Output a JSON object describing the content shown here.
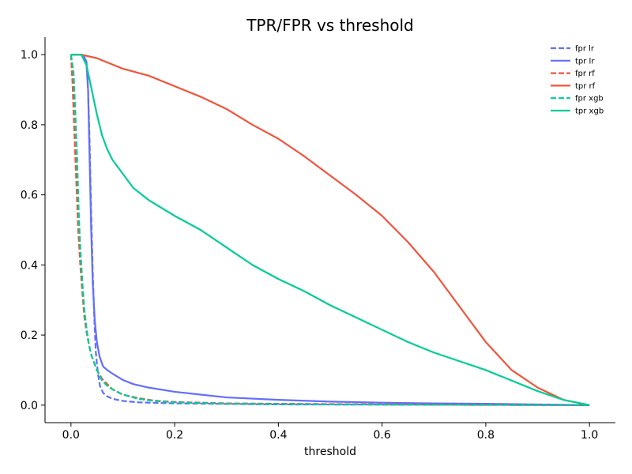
{
  "chart_data": {
    "type": "line",
    "title": "TPR/FPR vs threshold",
    "xlabel": "threshold",
    "ylabel": "",
    "xlim": [
      -0.05,
      1.05
    ],
    "ylim": [
      -0.05,
      1.05
    ],
    "x_ticks": [
      0.0,
      0.2,
      0.4,
      0.6,
      0.8,
      1.0
    ],
    "x_tick_labels": [
      "0.0",
      "0.2",
      "0.4",
      "0.6",
      "0.8",
      "1.0"
    ],
    "y_ticks": [
      0.0,
      0.2,
      0.4,
      0.6,
      0.8,
      1.0
    ],
    "y_tick_labels": [
      "0.0",
      "0.2",
      "0.4",
      "0.6",
      "0.8",
      "1.0"
    ],
    "grid": false,
    "legend_position": "top-right",
    "series": [
      {
        "name": "fpr lr",
        "color": "#636efa",
        "style": "dashed",
        "points": [
          [
            0.0,
            1.0
          ],
          [
            0.02,
            1.0
          ],
          [
            0.025,
            0.99
          ],
          [
            0.03,
            0.97
          ],
          [
            0.033,
            0.9
          ],
          [
            0.036,
            0.75
          ],
          [
            0.039,
            0.55
          ],
          [
            0.042,
            0.38
          ],
          [
            0.045,
            0.25
          ],
          [
            0.048,
            0.15
          ],
          [
            0.052,
            0.09
          ],
          [
            0.056,
            0.055
          ],
          [
            0.062,
            0.035
          ],
          [
            0.07,
            0.025
          ],
          [
            0.08,
            0.018
          ],
          [
            0.1,
            0.012
          ],
          [
            0.13,
            0.008
          ],
          [
            0.2,
            0.005
          ],
          [
            0.4,
            0.002
          ],
          [
            0.7,
            0.001
          ],
          [
            1.0,
            0.0
          ]
        ]
      },
      {
        "name": "tpr lr",
        "color": "#636efa",
        "style": "solid",
        "points": [
          [
            0.0,
            1.0
          ],
          [
            0.02,
            1.0
          ],
          [
            0.025,
            0.995
          ],
          [
            0.03,
            0.98
          ],
          [
            0.033,
            0.9
          ],
          [
            0.036,
            0.7
          ],
          [
            0.039,
            0.5
          ],
          [
            0.042,
            0.35
          ],
          [
            0.046,
            0.24
          ],
          [
            0.05,
            0.18
          ],
          [
            0.055,
            0.14
          ],
          [
            0.062,
            0.11
          ],
          [
            0.07,
            0.1
          ],
          [
            0.08,
            0.09
          ],
          [
            0.1,
            0.072
          ],
          [
            0.12,
            0.06
          ],
          [
            0.15,
            0.05
          ],
          [
            0.2,
            0.038
          ],
          [
            0.25,
            0.03
          ],
          [
            0.3,
            0.022
          ],
          [
            0.4,
            0.015
          ],
          [
            0.5,
            0.01
          ],
          [
            0.6,
            0.007
          ],
          [
            0.7,
            0.005
          ],
          [
            0.8,
            0.004
          ],
          [
            0.9,
            0.002
          ],
          [
            1.0,
            0.0
          ]
        ]
      },
      {
        "name": "fpr rf",
        "color": "#ef553b",
        "style": "dashed",
        "points": [
          [
            0.0,
            1.0
          ],
          [
            0.003,
            0.92
          ],
          [
            0.006,
            0.8
          ],
          [
            0.01,
            0.65
          ],
          [
            0.014,
            0.5
          ],
          [
            0.018,
            0.4
          ],
          [
            0.022,
            0.32
          ],
          [
            0.026,
            0.25
          ],
          [
            0.03,
            0.21
          ],
          [
            0.035,
            0.17
          ],
          [
            0.04,
            0.14
          ],
          [
            0.05,
            0.1
          ],
          [
            0.06,
            0.075
          ],
          [
            0.07,
            0.06
          ],
          [
            0.08,
            0.045
          ],
          [
            0.1,
            0.03
          ],
          [
            0.13,
            0.02
          ],
          [
            0.16,
            0.013
          ],
          [
            0.2,
            0.009
          ],
          [
            0.3,
            0.005
          ],
          [
            0.5,
            0.003
          ],
          [
            0.7,
            0.002
          ],
          [
            1.0,
            0.0
          ]
        ]
      },
      {
        "name": "tpr rf",
        "color": "#ef553b",
        "style": "solid",
        "points": [
          [
            0.0,
            1.0
          ],
          [
            0.02,
            1.0
          ],
          [
            0.05,
            0.99
          ],
          [
            0.1,
            0.96
          ],
          [
            0.15,
            0.94
          ],
          [
            0.2,
            0.91
          ],
          [
            0.25,
            0.88
          ],
          [
            0.3,
            0.845
          ],
          [
            0.35,
            0.8
          ],
          [
            0.4,
            0.76
          ],
          [
            0.45,
            0.71
          ],
          [
            0.5,
            0.655
          ],
          [
            0.55,
            0.6
          ],
          [
            0.6,
            0.54
          ],
          [
            0.65,
            0.465
          ],
          [
            0.7,
            0.38
          ],
          [
            0.75,
            0.28
          ],
          [
            0.8,
            0.18
          ],
          [
            0.85,
            0.1
          ],
          [
            0.9,
            0.05
          ],
          [
            0.95,
            0.015
          ],
          [
            1.0,
            0.0
          ]
        ]
      },
      {
        "name": "fpr xgb",
        "color": "#00cc96",
        "style": "dashed",
        "points": [
          [
            0.0,
            1.0
          ],
          [
            0.005,
            0.95
          ],
          [
            0.008,
            0.85
          ],
          [
            0.012,
            0.7
          ],
          [
            0.015,
            0.55
          ],
          [
            0.018,
            0.45
          ],
          [
            0.022,
            0.35
          ],
          [
            0.026,
            0.27
          ],
          [
            0.03,
            0.22
          ],
          [
            0.035,
            0.17
          ],
          [
            0.04,
            0.14
          ],
          [
            0.05,
            0.1
          ],
          [
            0.06,
            0.07
          ],
          [
            0.07,
            0.055
          ],
          [
            0.08,
            0.045
          ],
          [
            0.1,
            0.03
          ],
          [
            0.13,
            0.018
          ],
          [
            0.16,
            0.012
          ],
          [
            0.2,
            0.008
          ],
          [
            0.3,
            0.004
          ],
          [
            0.5,
            0.002
          ],
          [
            0.7,
            0.001
          ],
          [
            1.0,
            0.0
          ]
        ]
      },
      {
        "name": "tpr xgb",
        "color": "#00cc96",
        "style": "solid",
        "points": [
          [
            0.0,
            1.0
          ],
          [
            0.02,
            1.0
          ],
          [
            0.03,
            0.97
          ],
          [
            0.04,
            0.9
          ],
          [
            0.05,
            0.83
          ],
          [
            0.06,
            0.77
          ],
          [
            0.07,
            0.73
          ],
          [
            0.08,
            0.7
          ],
          [
            0.1,
            0.66
          ],
          [
            0.12,
            0.62
          ],
          [
            0.15,
            0.585
          ],
          [
            0.2,
            0.54
          ],
          [
            0.25,
            0.5
          ],
          [
            0.3,
            0.45
          ],
          [
            0.35,
            0.4
          ],
          [
            0.4,
            0.36
          ],
          [
            0.45,
            0.325
          ],
          [
            0.5,
            0.285
          ],
          [
            0.55,
            0.25
          ],
          [
            0.6,
            0.215
          ],
          [
            0.65,
            0.18
          ],
          [
            0.7,
            0.15
          ],
          [
            0.75,
            0.125
          ],
          [
            0.8,
            0.1
          ],
          [
            0.85,
            0.07
          ],
          [
            0.9,
            0.04
          ],
          [
            0.95,
            0.015
          ],
          [
            1.0,
            0.0
          ]
        ]
      }
    ]
  }
}
